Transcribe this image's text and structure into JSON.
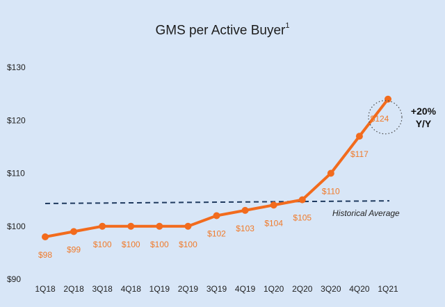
{
  "chart_data": {
    "type": "line",
    "title": "GMS per Active Buyer",
    "title_footnote": "1",
    "categories": [
      "1Q18",
      "2Q18",
      "3Q18",
      "4Q18",
      "1Q19",
      "2Q19",
      "3Q19",
      "4Q19",
      "1Q20",
      "2Q20",
      "3Q20",
      "4Q20",
      "1Q21"
    ],
    "series": [
      {
        "name": "GMS per Active Buyer",
        "values": [
          98,
          99,
          100,
          100,
          100,
          100,
          102,
          103,
          104,
          105,
          110,
          117,
          124
        ],
        "labels": [
          "$98",
          "$99",
          "$100",
          "$100",
          "$100",
          "$100",
          "$102",
          "$103",
          "$104",
          "$105",
          "$110",
          "$117",
          "$124"
        ],
        "color": "#f26b1d"
      }
    ],
    "ylim": [
      90,
      130
    ],
    "yticks": [
      90,
      100,
      110,
      120,
      130
    ],
    "ytick_labels": [
      "$90",
      "$100",
      "$110",
      "$120",
      "$130"
    ],
    "xlabel": "",
    "ylabel": "",
    "reference_line": {
      "label": "Historical Average",
      "start": 104.3,
      "end": 104.8,
      "color": "#1f3a5f",
      "style": "dashed"
    },
    "annotation": {
      "text_line1": "+20%",
      "text_line2": "Y/Y",
      "target_category": "1Q21"
    },
    "grid": false
  }
}
